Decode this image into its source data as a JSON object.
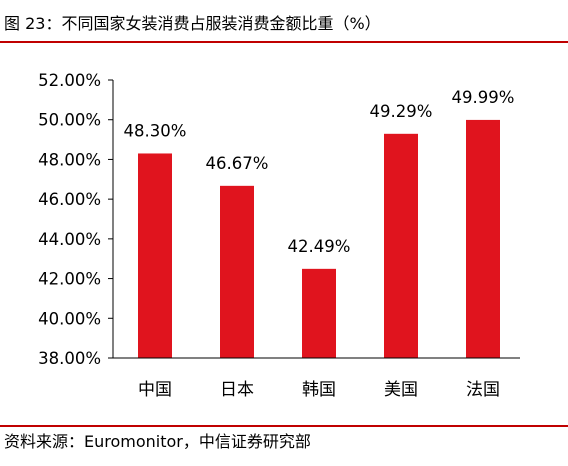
{
  "figure": {
    "title": "图 23：不同国家女装消费占服装消费金额比重（%）",
    "source": "资料来源：Euromonitor，中信证券研究部"
  },
  "colors": {
    "bar": "#e0141e",
    "rule": "#c00000",
    "axis": "#000000"
  },
  "chart_data": {
    "type": "bar",
    "categories": [
      "中国",
      "日本",
      "韩国",
      "美国",
      "法国"
    ],
    "values": [
      48.3,
      46.67,
      42.49,
      49.29,
      49.99
    ],
    "data_labels": [
      "48.30%",
      "46.67%",
      "42.49%",
      "49.29%",
      "49.99%"
    ],
    "y_ticks": [
      "38.00%",
      "40.00%",
      "42.00%",
      "44.00%",
      "46.00%",
      "48.00%",
      "50.00%",
      "52.00%"
    ],
    "ylim": [
      38,
      52
    ],
    "title": "",
    "xlabel": "",
    "ylabel": "",
    "grid": false,
    "legend": "none"
  }
}
